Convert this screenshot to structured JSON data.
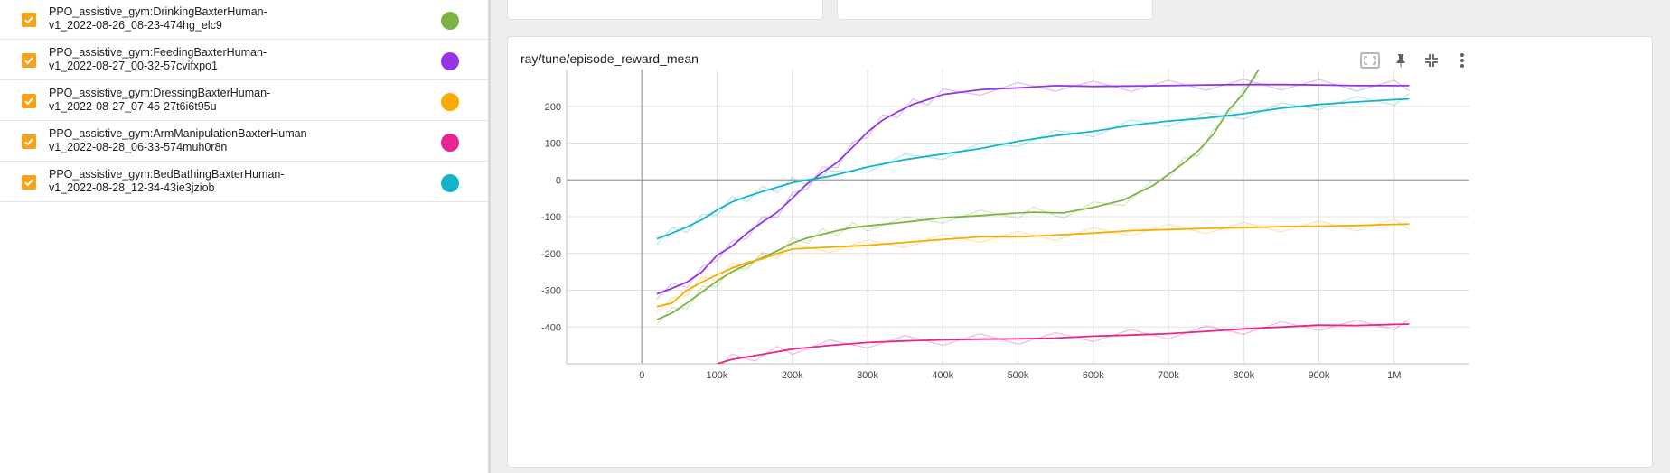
{
  "runs": [
    {
      "line1": "PPO_assistive_gym:DrinkingBaxterHuman-",
      "line2": "v1_2022-08-26_08-23-474hg_elc9",
      "color": "#7cb342",
      "checked": true
    },
    {
      "line1": "PPO_assistive_gym:FeedingBaxterHuman-",
      "line2": "v1_2022-08-27_00-32-57cvifxpo1",
      "color": "#9334e6",
      "checked": true
    },
    {
      "line1": "PPO_assistive_gym:DressingBaxterHuman-",
      "line2": "v1_2022-08-27_07-45-27t6i6t95u",
      "color": "#f9ab00",
      "checked": true
    },
    {
      "line1": "PPO_assistive_gym:ArmManipulationBaxterHuman-",
      "line2": "v1_2022-08-28_06-33-574muh0r8n",
      "color": "#e52592",
      "checked": true
    },
    {
      "line1": "PPO_assistive_gym:BedBathingBaxterHuman-",
      "line2": "v1_2022-08-28_12-34-43ie3jziob",
      "color": "#12b5cb",
      "checked": true
    }
  ],
  "card": {
    "title": "ray/tune/episode_reward_mean",
    "buttons": [
      "fit-domain-icon",
      "pin-icon",
      "collapse-icon",
      "more-vert-icon"
    ]
  },
  "chart_data": {
    "type": "line",
    "title": "ray/tune/episode_reward_mean",
    "xlabel": "",
    "ylabel": "",
    "xlim": [
      -100000,
      1100000
    ],
    "ylim": [
      -500,
      300
    ],
    "x_ticks": [
      0,
      100000,
      200000,
      300000,
      400000,
      500000,
      600000,
      700000,
      800000,
      900000,
      1000000
    ],
    "x_tick_labels": [
      "0",
      "100k",
      "200k",
      "300k",
      "400k",
      "500k",
      "600k",
      "700k",
      "800k",
      "900k",
      "1M"
    ],
    "y_ticks": [
      -400,
      -300,
      -200,
      -100,
      0,
      100,
      200
    ],
    "y_tick_labels": [
      "-400",
      "-300",
      "-200",
      "-100",
      "0",
      "100",
      "200"
    ],
    "grid": true,
    "series": [
      {
        "color": "#7cb342",
        "x": [
          20000,
          40000,
          60000,
          80000,
          100000,
          120000,
          140000,
          160000,
          180000,
          200000,
          220000,
          240000,
          260000,
          280000,
          300000,
          350000,
          400000,
          450000,
          500000,
          520000,
          560000,
          600000,
          640000,
          680000,
          700000,
          720000,
          740000,
          760000,
          780000,
          800000,
          820000
        ],
        "y": [
          -380,
          -362,
          -335,
          -305,
          -275,
          -250,
          -230,
          -212,
          -193,
          -172,
          -158,
          -148,
          -138,
          -130,
          -125,
          -115,
          -103,
          -97,
          -90,
          -88,
          -90,
          -75,
          -55,
          -15,
          15,
          45,
          80,
          125,
          190,
          235,
          300
        ]
      },
      {
        "color": "#9334e6",
        "x": [
          20000,
          40000,
          60000,
          80000,
          100000,
          120000,
          140000,
          160000,
          180000,
          200000,
          220000,
          240000,
          260000,
          280000,
          300000,
          320000,
          340000,
          360000,
          380000,
          400000,
          450000,
          500000,
          550000,
          600000,
          650000,
          700000,
          750000,
          800000,
          850000,
          900000,
          950000,
          1000000,
          1020000
        ],
        "y": [
          -310,
          -295,
          -278,
          -250,
          -205,
          -180,
          -145,
          -115,
          -88,
          -50,
          -10,
          20,
          48,
          88,
          130,
          162,
          185,
          205,
          218,
          232,
          245,
          250,
          256,
          254,
          255,
          256,
          258,
          259,
          259,
          258,
          256,
          256,
          256
        ]
      },
      {
        "color": "#f9ab00",
        "x": [
          20000,
          40000,
          60000,
          80000,
          100000,
          120000,
          140000,
          160000,
          180000,
          200000,
          250000,
          300000,
          350000,
          400000,
          450000,
          500000,
          550000,
          600000,
          650000,
          700000,
          750000,
          800000,
          850000,
          900000,
          950000,
          1000000,
          1020000
        ],
        "y": [
          -345,
          -335,
          -300,
          -278,
          -258,
          -240,
          -225,
          -215,
          -200,
          -188,
          -183,
          -178,
          -170,
          -162,
          -155,
          -155,
          -150,
          -145,
          -138,
          -135,
          -132,
          -130,
          -127,
          -126,
          -124,
          -121,
          -120
        ]
      },
      {
        "color": "#e52592",
        "x": [
          100000,
          120000,
          150000,
          180000,
          200000,
          250000,
          300000,
          350000,
          400000,
          450000,
          500000,
          550000,
          600000,
          650000,
          700000,
          750000,
          800000,
          850000,
          900000,
          950000,
          1000000,
          1020000
        ],
        "y": [
          -500,
          -488,
          -478,
          -467,
          -460,
          -450,
          -442,
          -438,
          -435,
          -433,
          -432,
          -430,
          -425,
          -422,
          -418,
          -412,
          -405,
          -400,
          -395,
          -396,
          -393,
          -392
        ]
      },
      {
        "color": "#12b5cb",
        "x": [
          20000,
          40000,
          60000,
          80000,
          100000,
          120000,
          140000,
          160000,
          180000,
          200000,
          220000,
          250000,
          300000,
          350000,
          400000,
          450000,
          500000,
          550000,
          600000,
          650000,
          700000,
          750000,
          800000,
          850000,
          900000,
          950000,
          1000000,
          1020000
        ],
        "y": [
          -160,
          -145,
          -128,
          -108,
          -82,
          -60,
          -45,
          -32,
          -20,
          -8,
          0,
          10,
          35,
          55,
          70,
          85,
          105,
          120,
          132,
          148,
          160,
          168,
          180,
          195,
          205,
          212,
          218,
          220
        ]
      }
    ]
  }
}
